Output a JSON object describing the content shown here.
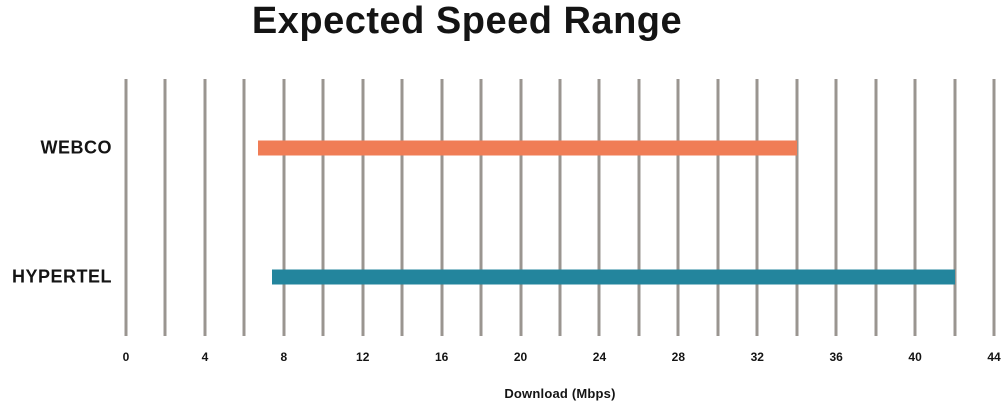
{
  "chart_data": {
    "type": "bar",
    "subtype": "horizontal-range",
    "title": "Expected Speed Range",
    "xlabel": "Download (Mbps)",
    "xlim": [
      0,
      44
    ],
    "gridline_step": 2,
    "tick_step": 4,
    "grid": true,
    "legend": false,
    "categories": [
      "WEBCO",
      "HYPERTEL"
    ],
    "series": [
      {
        "name": "WEBCO",
        "min": 6.7,
        "max": 34,
        "color": "#f07d56"
      },
      {
        "name": "HYPERTEL",
        "min": 7.4,
        "max": 42,
        "color": "#23859d"
      }
    ],
    "colors": {
      "gridline": "#9a9590",
      "text": "#141414",
      "background": "#ffffff"
    }
  }
}
